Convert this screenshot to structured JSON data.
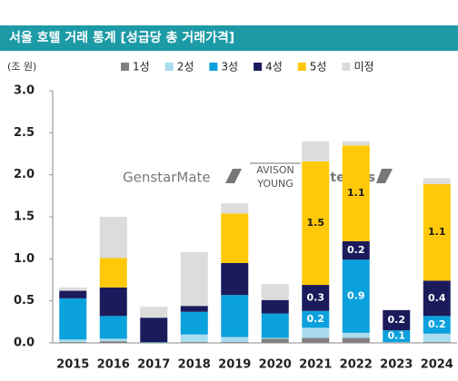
{
  "chart_data": {
    "type": "stacked_bar",
    "title": "서울 호텔 거래 통계 [성급당 총 거래가격]",
    "y_label": "(조 원)",
    "logos": [
      "GenstarMate",
      "AVISON",
      "YOUNG",
      "MatePlus"
    ],
    "categories": [
      "2015",
      "2016",
      "2017",
      "2018",
      "2019",
      "2020",
      "2021",
      "2022",
      "2023",
      "2024"
    ],
    "series": [
      {
        "name": "1성",
        "color": "#808080",
        "values": [
          0.01,
          0.02,
          0,
          0.01,
          0.01,
          0.05,
          0.06,
          0.06,
          0,
          0.01
        ]
      },
      {
        "name": "2성",
        "color": "#a9dcee",
        "values": [
          0.03,
          0.03,
          0,
          0.09,
          0.06,
          0.01,
          0.12,
          0.06,
          0.01,
          0.1
        ]
      },
      {
        "name": "3성",
        "color": "#0ba1dd",
        "values": [
          0.49,
          0.27,
          0.01,
          0.27,
          0.5,
          0.29,
          0.2,
          0.87,
          0.14,
          0.21
        ],
        "value_labels": [
          null,
          null,
          null,
          null,
          null,
          null,
          "0.2",
          "0.9",
          "0.1",
          "0.2"
        ],
        "label_color": "#ffffff"
      },
      {
        "name": "4성",
        "color": "#1b1b5c",
        "values": [
          0.09,
          0.34,
          0.29,
          0.07,
          0.38,
          0.16,
          0.31,
          0.22,
          0.24,
          0.42
        ],
        "value_labels": [
          null,
          null,
          null,
          null,
          null,
          null,
          "0.3",
          "0.2",
          "0.2",
          "0.4"
        ],
        "label_color": "#ffffff"
      },
      {
        "name": "5성",
        "color": "#ffc90a",
        "values": [
          0,
          0.35,
          0,
          0,
          0.59,
          0,
          1.47,
          1.14,
          0,
          1.15
        ],
        "value_labels": [
          null,
          null,
          null,
          null,
          null,
          null,
          "1.5",
          "1.1",
          null,
          "1.1"
        ],
        "label_color": "#1a1a1a"
      },
      {
        "name": "미정",
        "color": "#dcdcdc",
        "values": [
          0.04,
          0.49,
          0.13,
          0.64,
          0.12,
          0.19,
          0.24,
          0.05,
          0,
          0.07
        ]
      }
    ],
    "ylim": [
      0,
      3
    ],
    "yticks": [
      {
        "value": 0,
        "label": "0.0"
      },
      0.5,
      {
        "value": 1,
        "label": "1.0"
      },
      1.5,
      {
        "value": 2,
        "label": "2.0"
      },
      2.5,
      {
        "value": 3,
        "label": "3.0"
      }
    ]
  }
}
